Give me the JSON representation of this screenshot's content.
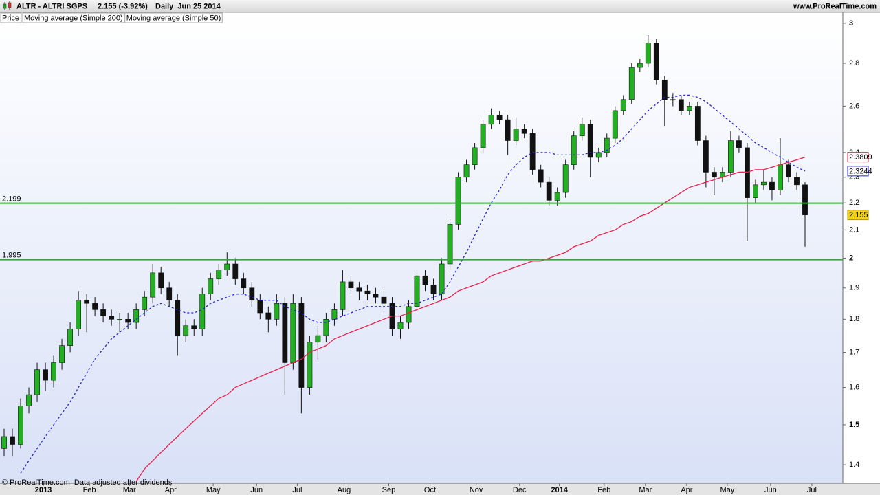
{
  "chart_data": {
    "type": "candlestick",
    "title": "ALTR - ALTRI SGPS",
    "subtitle": "2.155 (-3.92%)",
    "period": "Daily  Jun 25 2014",
    "source": "www.ProRealTime.com",
    "footer": "© ProRealTime.com  Data adjusted after dividends",
    "price_name": "Price",
    "up_color": "#22b022",
    "down_color": "#111111",
    "log_scale": true,
    "open": [
      1.44,
      1.47,
      1.45,
      1.55,
      1.58,
      1.65,
      1.62,
      1.67,
      1.72,
      1.77,
      1.86,
      1.85,
      1.83,
      1.81,
      1.8,
      1.8,
      1.79,
      1.83,
      1.87,
      1.95,
      1.9,
      1.86,
      1.75,
      1.78,
      1.77,
      1.88,
      1.93,
      1.96,
      1.98,
      1.93,
      1.9,
      1.86,
      1.82,
      1.8,
      1.85,
      1.67,
      1.85,
      1.6,
      1.73,
      1.75,
      1.8,
      1.83,
      1.92,
      1.9,
      1.89,
      1.88,
      1.87,
      1.85,
      1.77,
      1.79,
      1.84,
      1.94,
      1.91,
      1.88,
      1.98,
      2.12,
      2.3,
      2.35,
      2.42,
      2.52,
      2.56,
      2.54,
      2.45,
      2.5,
      2.48,
      2.33,
      2.28,
      2.21,
      2.24,
      2.35,
      2.47,
      2.52,
      2.38,
      2.4,
      2.46,
      2.58,
      2.63,
      2.78,
      2.8,
      2.9,
      2.72,
      2.63,
      2.63,
      2.58,
      2.6,
      2.45,
      2.32,
      2.3,
      2.32,
      2.45,
      2.42,
      2.22,
      2.27,
      2.28,
      2.25,
      2.35,
      2.3,
      2.27
    ],
    "high": [
      1.49,
      1.49,
      1.57,
      1.6,
      1.67,
      1.67,
      1.69,
      1.74,
      1.79,
      1.89,
      1.88,
      1.87,
      1.85,
      1.83,
      1.82,
      1.82,
      1.85,
      1.89,
      1.98,
      1.97,
      1.92,
      1.88,
      1.8,
      1.8,
      1.9,
      1.95,
      1.98,
      2.02,
      2.0,
      1.95,
      1.92,
      1.88,
      1.84,
      1.88,
      1.87,
      1.88,
      1.87,
      1.75,
      1.78,
      1.82,
      1.85,
      1.96,
      1.94,
      1.92,
      1.91,
      1.9,
      1.89,
      1.87,
      1.81,
      1.86,
      1.96,
      1.96,
      1.93,
      2.0,
      2.14,
      2.32,
      2.37,
      2.44,
      2.54,
      2.59,
      2.58,
      2.56,
      2.55,
      2.52,
      2.5,
      2.35,
      2.3,
      2.26,
      2.37,
      2.49,
      2.55,
      2.54,
      2.42,
      2.48,
      2.6,
      2.65,
      2.8,
      2.82,
      2.94,
      2.92,
      2.74,
      2.66,
      2.65,
      2.62,
      2.62,
      2.47,
      2.34,
      2.34,
      2.49,
      2.47,
      2.44,
      2.29,
      2.33,
      2.3,
      2.46,
      2.37,
      2.32,
      2.28
    ],
    "low": [
      1.42,
      1.42,
      1.44,
      1.53,
      1.56,
      1.59,
      1.6,
      1.65,
      1.7,
      1.75,
      1.76,
      1.81,
      1.79,
      1.78,
      1.76,
      1.77,
      1.77,
      1.81,
      1.85,
      1.88,
      1.84,
      1.69,
      1.73,
      1.75,
      1.75,
      1.86,
      1.91,
      1.94,
      1.91,
      1.88,
      1.84,
      1.8,
      1.76,
      1.78,
      1.58,
      1.65,
      1.53,
      1.58,
      1.68,
      1.73,
      1.78,
      1.81,
      1.88,
      1.86,
      1.86,
      1.85,
      1.83,
      1.75,
      1.74,
      1.77,
      1.82,
      1.89,
      1.86,
      1.86,
      1.96,
      2.1,
      2.28,
      2.33,
      2.4,
      2.5,
      2.52,
      2.39,
      2.43,
      2.46,
      2.31,
      2.26,
      2.19,
      2.19,
      2.22,
      2.33,
      2.45,
      2.3,
      2.36,
      2.38,
      2.44,
      2.56,
      2.61,
      2.76,
      2.78,
      2.7,
      2.51,
      2.6,
      2.56,
      2.56,
      2.43,
      2.26,
      2.23,
      2.28,
      2.3,
      2.4,
      2.06,
      2.2,
      2.25,
      2.21,
      2.23,
      2.28,
      2.25,
      2.04
    ],
    "close": [
      1.47,
      1.45,
      1.55,
      1.58,
      1.65,
      1.62,
      1.67,
      1.72,
      1.77,
      1.86,
      1.85,
      1.83,
      1.81,
      1.8,
      1.8,
      1.79,
      1.83,
      1.87,
      1.95,
      1.9,
      1.86,
      1.75,
      1.78,
      1.77,
      1.88,
      1.93,
      1.96,
      1.98,
      1.93,
      1.9,
      1.86,
      1.82,
      1.8,
      1.85,
      1.67,
      1.85,
      1.6,
      1.73,
      1.75,
      1.8,
      1.83,
      1.92,
      1.9,
      1.89,
      1.88,
      1.87,
      1.85,
      1.77,
      1.79,
      1.84,
      1.94,
      1.91,
      1.88,
      1.98,
      2.12,
      2.3,
      2.35,
      2.42,
      2.52,
      2.56,
      2.54,
      2.45,
      2.5,
      2.48,
      2.33,
      2.28,
      2.21,
      2.24,
      2.35,
      2.47,
      2.52,
      2.38,
      2.4,
      2.46,
      2.58,
      2.63,
      2.78,
      2.8,
      2.9,
      2.72,
      2.63,
      2.63,
      2.58,
      2.6,
      2.45,
      2.32,
      2.3,
      2.32,
      2.45,
      2.42,
      2.22,
      2.27,
      2.28,
      2.25,
      2.35,
      2.3,
      2.27,
      2.155
    ],
    "series": [
      {
        "name": "Moving average (Simple 200)",
        "color": "#e8204a",
        "dashed": false,
        "values": [
          null,
          null,
          null,
          null,
          null,
          null,
          null,
          null,
          null,
          null,
          null,
          null,
          null,
          null,
          null,
          null,
          1.36,
          1.39,
          1.41,
          1.43,
          1.45,
          1.47,
          1.49,
          1.51,
          1.53,
          1.55,
          1.57,
          1.58,
          1.6,
          1.61,
          1.62,
          1.63,
          1.64,
          1.65,
          1.66,
          1.67,
          1.68,
          1.7,
          1.71,
          1.72,
          1.74,
          1.75,
          1.76,
          1.77,
          1.78,
          1.79,
          1.8,
          1.81,
          1.81,
          1.82,
          1.83,
          1.84,
          1.85,
          1.86,
          1.87,
          1.89,
          1.9,
          1.91,
          1.92,
          1.94,
          1.95,
          1.96,
          1.97,
          1.98,
          1.99,
          1.99,
          2.0,
          2.01,
          2.02,
          2.04,
          2.05,
          2.06,
          2.08,
          2.09,
          2.1,
          2.12,
          2.13,
          2.15,
          2.16,
          2.18,
          2.2,
          2.22,
          2.24,
          2.26,
          2.27,
          2.28,
          2.29,
          2.3,
          2.31,
          2.32,
          2.32,
          2.33,
          2.33,
          2.34,
          2.35,
          2.36,
          2.37,
          2.3809
        ]
      },
      {
        "name": "Moving average (Simple 50)",
        "color": "#2424d8",
        "dashed": true,
        "values": [
          null,
          null,
          1.38,
          1.41,
          1.44,
          1.47,
          1.5,
          1.53,
          1.56,
          1.6,
          1.64,
          1.68,
          1.71,
          1.74,
          1.76,
          1.78,
          1.8,
          1.82,
          1.84,
          1.85,
          1.84,
          1.83,
          1.82,
          1.82,
          1.83,
          1.85,
          1.86,
          1.87,
          1.88,
          1.88,
          1.87,
          1.86,
          1.86,
          1.86,
          1.84,
          1.83,
          1.82,
          1.8,
          1.79,
          1.79,
          1.8,
          1.81,
          1.82,
          1.83,
          1.84,
          1.84,
          1.84,
          1.84,
          1.84,
          1.85,
          1.85,
          1.86,
          1.87,
          1.88,
          1.92,
          1.97,
          2.02,
          2.08,
          2.14,
          2.2,
          2.25,
          2.31,
          2.35,
          2.38,
          2.4,
          2.4,
          2.4,
          2.39,
          2.39,
          2.39,
          2.39,
          2.4,
          2.4,
          2.41,
          2.43,
          2.46,
          2.5,
          2.54,
          2.58,
          2.61,
          2.64,
          2.64,
          2.65,
          2.65,
          2.64,
          2.62,
          2.59,
          2.56,
          2.53,
          2.5,
          2.47,
          2.44,
          2.42,
          2.4,
          2.38,
          2.36,
          2.34,
          2.3244
        ]
      }
    ],
    "levels": [
      2.199,
      1.995
    ],
    "level_color": "#33aa33",
    "ylim": [
      1.356,
      3.057
    ],
    "yticks": [
      1.4,
      1.5,
      1.6,
      1.7,
      1.8,
      1.9,
      2,
      2.1,
      2.2,
      2.3,
      2.4,
      2.6,
      2.8,
      3
    ],
    "xlim": [
      -0.5,
      101.58
    ],
    "xticks": [
      {
        "value": 4.75,
        "label": "2013"
      },
      {
        "value": 10.33,
        "label": "Feb"
      },
      {
        "value": 15.17,
        "label": "Mar"
      },
      {
        "value": 20.17,
        "label": "Apr"
      },
      {
        "value": 25.33,
        "label": "May"
      },
      {
        "value": 30.58,
        "label": "Jun"
      },
      {
        "value": 35.5,
        "label": "Jul"
      },
      {
        "value": 41.17,
        "label": "Aug"
      },
      {
        "value": 46.58,
        "label": "Sep"
      },
      {
        "value": 51.58,
        "label": "Oct"
      },
      {
        "value": 57.17,
        "label": "Nov"
      },
      {
        "value": 62.42,
        "label": "Dec"
      },
      {
        "value": 67.25,
        "label": "2014"
      },
      {
        "value": 72.67,
        "label": "Feb"
      },
      {
        "value": 77.67,
        "label": "Mar"
      },
      {
        "value": 82.67,
        "label": "Apr"
      },
      {
        "value": 87.58,
        "label": "May"
      },
      {
        "value": 92.83,
        "label": "Jun"
      },
      {
        "value": 97.83,
        "label": "Jul"
      }
    ]
  }
}
